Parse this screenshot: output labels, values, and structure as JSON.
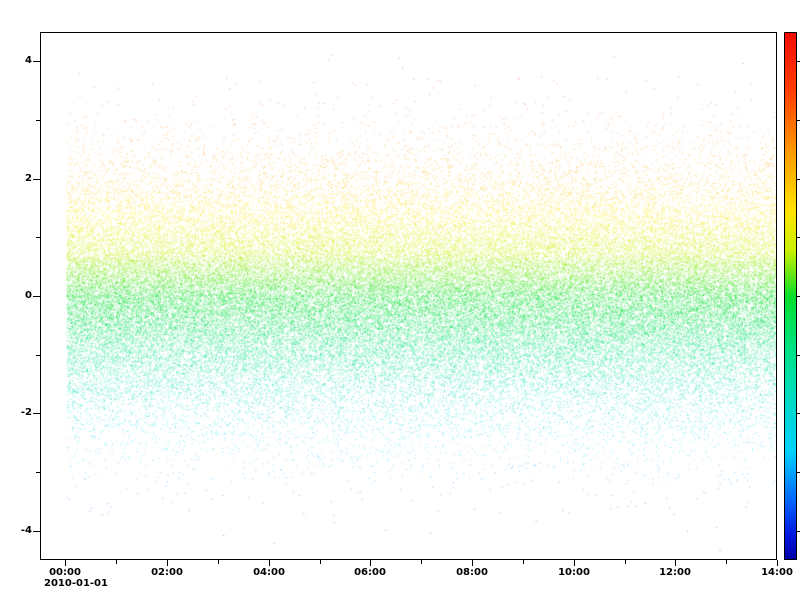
{
  "figure": {
    "background": "#ffffff",
    "axes_color": "#000000"
  },
  "chart_data": {
    "type": "scatter",
    "title": "",
    "xlabel": "",
    "ylabel": "",
    "grid": false,
    "x_axis": {
      "kind": "datetime",
      "date_label": "2010-01-01",
      "range_hours": [
        -0.5,
        14
      ],
      "tick_hours": [
        0,
        2,
        4,
        6,
        8,
        10,
        12,
        14
      ],
      "tick_labels": [
        "00:00",
        "02:00",
        "04:00",
        "06:00",
        "08:00",
        "10:00",
        "12:00",
        "14:00"
      ],
      "minor_tick_hours": [
        1,
        3,
        5,
        7,
        9,
        11,
        13
      ]
    },
    "y_axis": {
      "range": [
        -4.5,
        4.5
      ],
      "tick_values": [
        4,
        2,
        0,
        -2,
        -4
      ],
      "tick_labels": [
        "4",
        "2",
        "0",
        "-2",
        "-4"
      ],
      "minor_tick_values": [
        3,
        1,
        -1,
        -3
      ]
    },
    "colorbar": {
      "range": [
        -4.5,
        4.5
      ],
      "tick_values": [
        4,
        3,
        2,
        1,
        0,
        -1,
        -2,
        -3,
        -4
      ],
      "tick_labels": [],
      "colormap_stops": [
        {
          "t": 0.0,
          "color": "#f50c00"
        },
        {
          "t": 0.11,
          "color": "#ff3d00"
        },
        {
          "t": 0.224,
          "color": "#ff9800"
        },
        {
          "t": 0.338,
          "color": "#ffe400"
        },
        {
          "t": 0.414,
          "color": "#c9f000"
        },
        {
          "t": 0.502,
          "color": "#06df2b"
        },
        {
          "t": 0.605,
          "color": "#00e388"
        },
        {
          "t": 0.719,
          "color": "#00d8d1"
        },
        {
          "t": 0.795,
          "color": "#00d2ff"
        },
        {
          "t": 0.89,
          "color": "#0064ff"
        },
        {
          "t": 0.956,
          "color": "#0015dc"
        },
        {
          "t": 1.0,
          "color": "#0000a6"
        }
      ]
    },
    "points": {
      "count": 75000,
      "x_distribution": "uniform",
      "x_range_hours": [
        0,
        14
      ],
      "y_distribution": "gaussian",
      "y_mean": 0,
      "y_std": 1.05,
      "y_clip": [
        -4.45,
        4.45
      ],
      "color_encoding": "y-value mapped through rainbow colormap",
      "alpha": 0.45,
      "marker_size_px": 1,
      "seed": 42
    }
  }
}
